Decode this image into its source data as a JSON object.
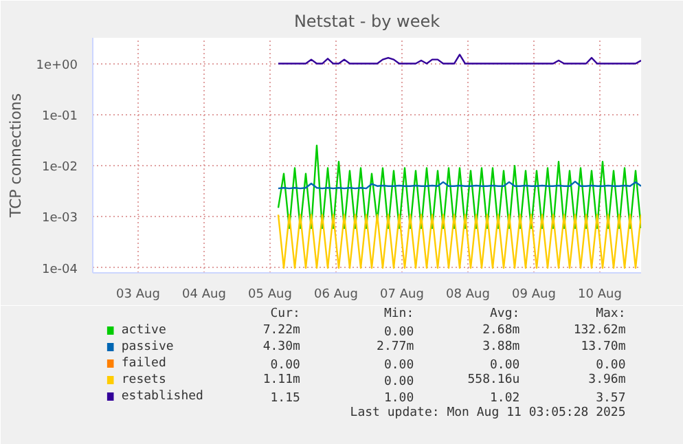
{
  "chart_data": {
    "type": "line",
    "title": "Netstat - by week",
    "ylabel": "TCP connections",
    "log": "y",
    "grid": true,
    "legend": "bottom",
    "xlim": [
      "2025-08-02T19:30",
      "2025-08-11T03:00"
    ],
    "ylim": [
      8e-05,
      3.2
    ],
    "xticks": [
      {
        "value": "2025-08-03T12:00",
        "label": "03 Aug"
      },
      {
        "value": "2025-08-04T12:00",
        "label": "04 Aug"
      },
      {
        "value": "2025-08-05T12:00",
        "label": "05 Aug"
      },
      {
        "value": "2025-08-06T12:00",
        "label": "06 Aug"
      },
      {
        "value": "2025-08-07T12:00",
        "label": "07 Aug"
      },
      {
        "value": "2025-08-08T12:00",
        "label": "08 Aug"
      },
      {
        "value": "2025-08-09T12:00",
        "label": "09 Aug"
      },
      {
        "value": "2025-08-10T12:00",
        "label": "10 Aug"
      }
    ],
    "yticks": [
      {
        "value": 0.0001,
        "label": "1e-04"
      },
      {
        "value": 0.001,
        "label": "1e-03"
      },
      {
        "value": 0.01,
        "label": "1e-02"
      },
      {
        "value": 0.1,
        "label": "1e-01"
      },
      {
        "value": 1,
        "label": "1e+00"
      }
    ],
    "x": [
      "2025-08-05T15:00",
      "2025-08-05T17:00",
      "2025-08-05T19:00",
      "2025-08-05T21:00",
      "2025-08-05T23:00",
      "2025-08-06T01:00",
      "2025-08-06T03:00",
      "2025-08-06T05:00",
      "2025-08-06T07:00",
      "2025-08-06T09:00",
      "2025-08-06T11:00",
      "2025-08-06T13:00",
      "2025-08-06T15:00",
      "2025-08-06T17:00",
      "2025-08-06T19:00",
      "2025-08-06T21:00",
      "2025-08-06T23:00",
      "2025-08-07T01:00",
      "2025-08-07T03:00",
      "2025-08-07T05:00",
      "2025-08-07T07:00",
      "2025-08-07T09:00",
      "2025-08-07T11:00",
      "2025-08-07T13:00",
      "2025-08-07T15:00",
      "2025-08-07T17:00",
      "2025-08-07T19:00",
      "2025-08-07T21:00",
      "2025-08-07T23:00",
      "2025-08-08T01:00",
      "2025-08-08T03:00",
      "2025-08-08T05:00",
      "2025-08-08T07:00",
      "2025-08-08T09:00",
      "2025-08-08T11:00",
      "2025-08-08T13:00",
      "2025-08-08T15:00",
      "2025-08-08T17:00",
      "2025-08-08T19:00",
      "2025-08-08T21:00",
      "2025-08-08T23:00",
      "2025-08-09T01:00",
      "2025-08-09T03:00",
      "2025-08-09T05:00",
      "2025-08-09T07:00",
      "2025-08-09T09:00",
      "2025-08-09T11:00",
      "2025-08-09T13:00",
      "2025-08-09T15:00",
      "2025-08-09T17:00",
      "2025-08-09T19:00",
      "2025-08-09T21:00",
      "2025-08-09T23:00",
      "2025-08-10T01:00",
      "2025-08-10T03:00",
      "2025-08-10T05:00",
      "2025-08-10T07:00",
      "2025-08-10T09:00",
      "2025-08-10T11:00",
      "2025-08-10T13:00",
      "2025-08-10T15:00",
      "2025-08-10T17:00",
      "2025-08-10T19:00",
      "2025-08-10T21:00",
      "2025-08-10T23:00",
      "2025-08-11T01:00",
      "2025-08-11T03:00"
    ],
    "series": [
      {
        "name": "active",
        "color": "#00cc00",
        "values": [
          0.0015,
          0.007,
          0.0006,
          0.009,
          0.0006,
          0.007,
          0.0006,
          0.025,
          0.0006,
          0.009,
          0.0006,
          0.012,
          0.0006,
          0.008,
          0.0006,
          0.009,
          0.0006,
          0.007,
          0.0008,
          0.009,
          0.0006,
          0.008,
          0.0006,
          0.009,
          0.0006,
          0.008,
          0.0006,
          0.009,
          0.0006,
          0.008,
          0.0006,
          0.009,
          0.0006,
          0.009,
          0.0006,
          0.008,
          0.0006,
          0.009,
          0.0006,
          0.009,
          0.0006,
          0.008,
          0.0006,
          0.01,
          0.0006,
          0.008,
          0.0006,
          0.008,
          0.0006,
          0.009,
          0.0006,
          0.012,
          0.0006,
          0.008,
          0.0006,
          0.009,
          0.0006,
          0.008,
          0.0006,
          0.012,
          0.0006,
          0.008,
          0.0006,
          0.009,
          0.0006,
          0.008,
          0.0006
        ]
      },
      {
        "name": "passive",
        "color": "#0066b3",
        "values": [
          0.0036,
          0.0037,
          0.0036,
          0.0037,
          0.0036,
          0.0037,
          0.0045,
          0.0037,
          0.0036,
          0.0037,
          0.0036,
          0.0037,
          0.0036,
          0.0037,
          0.0036,
          0.0037,
          0.0036,
          0.0044,
          0.004,
          0.0041,
          0.004,
          0.004,
          0.0041,
          0.004,
          0.004,
          0.0041,
          0.004,
          0.004,
          0.0041,
          0.004,
          0.0048,
          0.004,
          0.004,
          0.0041,
          0.004,
          0.004,
          0.0041,
          0.004,
          0.004,
          0.0041,
          0.004,
          0.004,
          0.0048,
          0.004,
          0.004,
          0.0041,
          0.004,
          0.004,
          0.0041,
          0.004,
          0.004,
          0.0041,
          0.004,
          0.004,
          0.0049,
          0.004,
          0.004,
          0.0041,
          0.004,
          0.004,
          0.0041,
          0.004,
          0.004,
          0.0041,
          0.004,
          0.0048,
          0.004
        ]
      },
      {
        "name": "failed",
        "color": "#ff8000",
        "values": [
          null,
          null,
          null,
          null,
          null,
          null,
          null,
          null,
          null,
          null,
          null,
          null,
          null,
          null,
          null,
          null,
          null,
          null,
          null,
          null,
          null,
          null,
          null,
          null,
          null,
          null,
          null,
          null,
          null,
          null,
          null,
          null,
          null,
          null,
          null,
          null,
          null,
          null,
          null,
          null,
          null,
          null,
          null,
          null,
          null,
          null,
          null,
          null,
          null,
          null,
          null,
          null,
          null,
          null,
          null,
          null,
          null,
          null,
          null,
          null,
          null,
          null,
          null,
          null,
          null,
          null,
          null
        ]
      },
      {
        "name": "resets",
        "color": "#ffcc00",
        "values": [
          0.0011,
          0.0001,
          0.0011,
          0.0001,
          0.0011,
          0.0001,
          0.0011,
          0.0001,
          0.0011,
          0.0001,
          0.0011,
          0.0001,
          0.0011,
          0.0001,
          0.0011,
          0.0001,
          0.0011,
          0.0001,
          0.0011,
          0.0001,
          0.0011,
          0.0001,
          0.0011,
          0.0001,
          0.0011,
          0.0001,
          0.0011,
          0.0001,
          0.0011,
          0.0001,
          0.0011,
          0.0001,
          0.0011,
          0.0001,
          0.0011,
          0.0001,
          0.0011,
          0.0001,
          0.0011,
          0.0001,
          0.0011,
          0.0001,
          0.0011,
          0.0001,
          0.0011,
          0.0001,
          0.0011,
          0.0001,
          0.0011,
          0.0001,
          0.0011,
          0.0001,
          0.0011,
          0.0001,
          0.0011,
          0.0001,
          0.0011,
          0.0001,
          0.0011,
          0.0001,
          0.0011,
          0.0001,
          0.0011,
          0.0001,
          0.0011,
          0.0001,
          0.0011
        ]
      },
      {
        "name": "established",
        "color": "#330099",
        "values": [
          1,
          1,
          1,
          1,
          1,
          1,
          1.2,
          1,
          1,
          1.25,
          1,
          1,
          1.2,
          1,
          1,
          1,
          1,
          1,
          1,
          1.2,
          1.3,
          1.2,
          1,
          1,
          1,
          1,
          1.15,
          1,
          1.2,
          1.2,
          1,
          1,
          1,
          1.5,
          1,
          1,
          1,
          1,
          1,
          1,
          1,
          1,
          1,
          1,
          1,
          1,
          1,
          1,
          1,
          1,
          1,
          1.15,
          1,
          1,
          1,
          1,
          1,
          1.3,
          1,
          1,
          1,
          1,
          1,
          1,
          1,
          1,
          1.15
        ]
      }
    ],
    "annotations": [
      "Cur:",
      "Min:",
      "Avg:",
      "Max:",
      "7.22m",
      "0.00",
      "2.68m",
      "132.62m",
      "4.30m",
      "2.77m",
      "3.88m",
      "13.70m",
      "0.00",
      "0.00",
      "0.00",
      "0.00",
      "1.11m",
      "0.00",
      "558.16u",
      "3.96m",
      "1.15",
      "1.00",
      "1.02",
      "3.57",
      "Last update: Mon Aug 11 03:05:28 2025"
    ]
  }
}
